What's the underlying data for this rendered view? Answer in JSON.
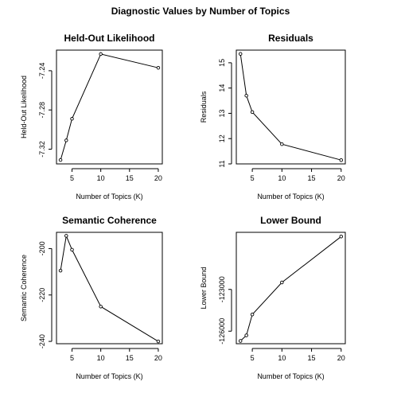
{
  "title": "Diagnostic Values by Number of Topics",
  "chart_data": [
    {
      "type": "line",
      "title": "Held-Out Likelihood",
      "xlabel": "Number of Topics (K)",
      "ylabel": "Held-Out Likelihood",
      "x": [
        3,
        4,
        5,
        10,
        20
      ],
      "y": [
        -7.331,
        -7.311,
        -7.289,
        -7.223,
        -7.237
      ],
      "xlim": [
        2.3,
        20.7
      ],
      "ylim": [
        -7.335,
        -7.219
      ],
      "xticks": [
        5,
        10,
        15,
        20
      ],
      "yticks": [
        -7.32,
        -7.28,
        -7.24
      ],
      "ytick_labels": [
        "-7.32",
        "-7.28",
        "-7.24"
      ]
    },
    {
      "type": "line",
      "title": "Residuals",
      "xlabel": "Number of Topics (K)",
      "ylabel": "Residuals",
      "x": [
        3,
        4,
        5,
        10,
        20
      ],
      "y": [
        15.35,
        13.7,
        13.05,
        11.78,
        11.15
      ],
      "xlim": [
        2.3,
        20.7
      ],
      "ylim": [
        11.0,
        15.5
      ],
      "xticks": [
        5,
        10,
        15,
        20
      ],
      "yticks": [
        11,
        12,
        13,
        14,
        15
      ],
      "ytick_labels": [
        "11",
        "12",
        "13",
        "14",
        "15"
      ]
    },
    {
      "type": "line",
      "title": "Semantic Coherence",
      "xlabel": "Number of Topics (K)",
      "ylabel": "Semantic Coherence",
      "x": [
        3,
        4,
        5,
        10,
        20
      ],
      "y": [
        -209.5,
        -194.5,
        -200.5,
        -225.0,
        -240.0
      ],
      "xlim": [
        2.3,
        20.7
      ],
      "ylim": [
        -241.0,
        -193.0
      ],
      "xticks": [
        5,
        10,
        15,
        20
      ],
      "yticks": [
        -240,
        -220,
        -200
      ],
      "ytick_labels": [
        "-240",
        "-220",
        "-200"
      ]
    },
    {
      "type": "line",
      "title": "Lower Bound",
      "xlabel": "Number of Topics (K)",
      "ylabel": "Lower Bound",
      "x": [
        3,
        4,
        5,
        10,
        20
      ],
      "y": [
        -126700,
        -126300,
        -124800,
        -122500,
        -119200
      ],
      "xlim": [
        2.3,
        20.7
      ],
      "ylim": [
        -126900,
        -118900
      ],
      "xticks": [
        5,
        10,
        15,
        20
      ],
      "yticks": [
        -126000,
        -123000
      ],
      "ytick_labels": [
        "-126000",
        "-123000"
      ]
    }
  ]
}
